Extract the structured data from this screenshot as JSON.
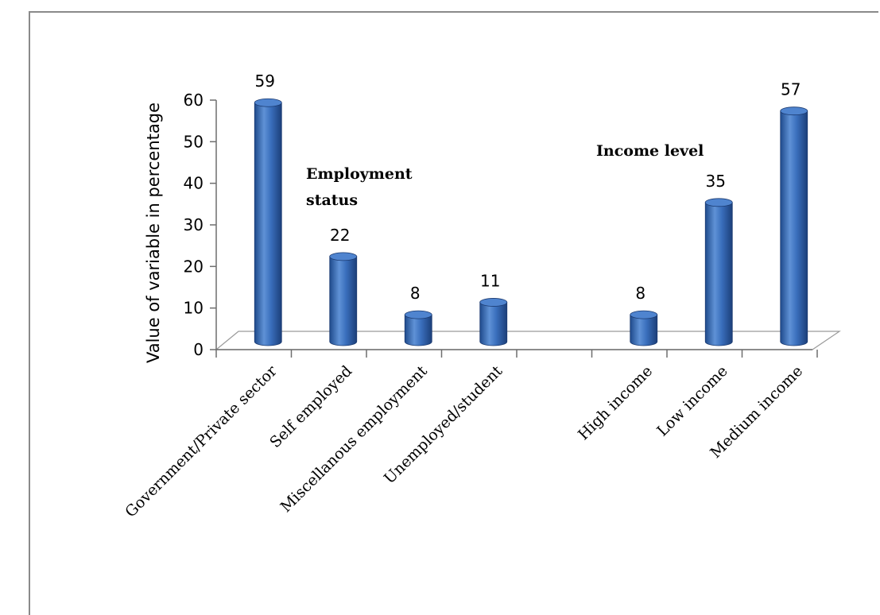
{
  "chart_data": {
    "type": "bar",
    "categories": [
      "Government/Private sector",
      "Self employed",
      "Miscellanous employment",
      "Unemployed/student",
      "",
      "High income",
      "Low income",
      "Medium income"
    ],
    "values": [
      59,
      22,
      8,
      11,
      null,
      8,
      35,
      57
    ],
    "value_labels": [
      "59",
      "22",
      "8",
      "11",
      "",
      "8",
      "35",
      "57"
    ],
    "ylabel": "Value of variable in percentage",
    "ylim": [
      0,
      60
    ],
    "yticks": [
      "0",
      "10",
      "20",
      "30",
      "40",
      "50",
      "60"
    ],
    "annotations": [
      {
        "lines": [
          "Employment",
          "status"
        ]
      },
      {
        "lines": [
          "Income level"
        ]
      }
    ],
    "grid": false,
    "bar_shape": "3d-cylinder",
    "bar_color": "#3a6fbd"
  }
}
